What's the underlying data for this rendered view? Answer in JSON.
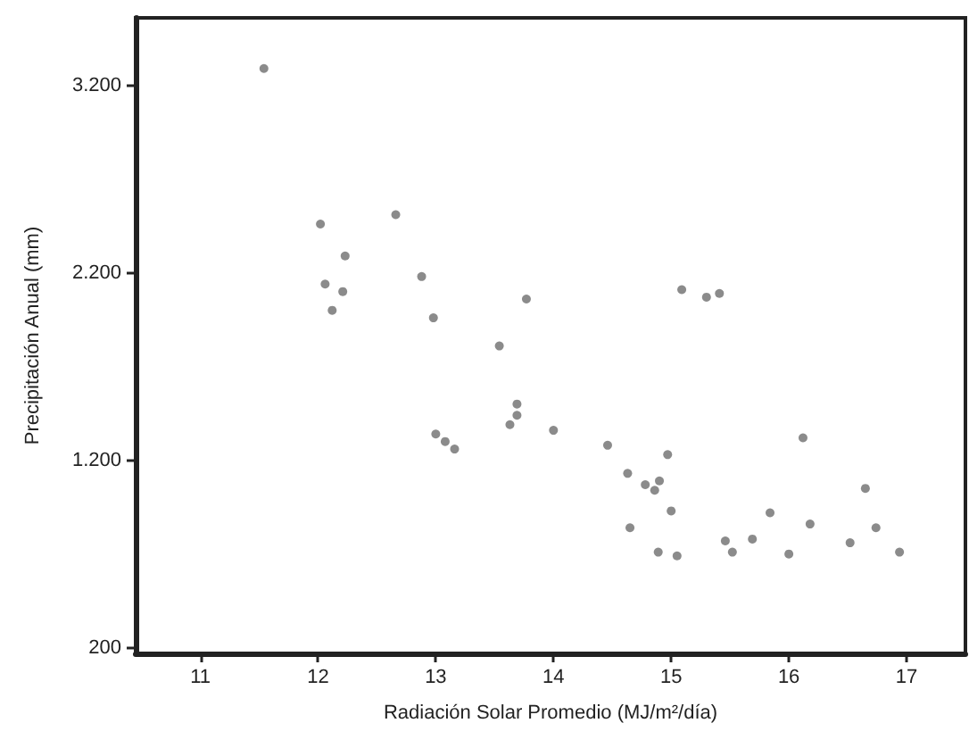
{
  "chart_data": {
    "type": "scatter",
    "xlabel": "Radiación Solar Promedio (MJ/m²/día)",
    "ylabel": "Precipitación Anual (mm)",
    "xlim": [
      10.45,
      17.5
    ],
    "xticks": [
      11,
      12,
      13,
      14,
      15,
      16,
      17
    ],
    "ylim": [
      170,
      3560
    ],
    "yticks": [
      {
        "value": 200,
        "label": "200"
      },
      {
        "value": 1200,
        "label": "1.200"
      },
      {
        "value": 2200,
        "label": "2.200"
      },
      {
        "value": 3200,
        "label": "3.200"
      }
    ],
    "grid": false,
    "marker": "circle",
    "series": [
      {
        "color": "#6e6e6e",
        "x": [
          11.54,
          12.02,
          12.66,
          12.23,
          12.06,
          12.21,
          12.12,
          12.88,
          12.98,
          13.77,
          13.54,
          13.0,
          13.08,
          13.16,
          13.69,
          13.69,
          13.63,
          14.0,
          14.46,
          14.63,
          14.78,
          14.9,
          14.86,
          14.97,
          15.0,
          14.65,
          14.89,
          15.05,
          15.09,
          15.3,
          15.41,
          15.46,
          15.52,
          15.69,
          15.84,
          16.0,
          16.12,
          16.18,
          16.52,
          16.65,
          16.74,
          16.94
        ],
        "values": [
          3290,
          2460,
          2510,
          2290,
          2140,
          2100,
          2000,
          2180,
          1960,
          2060,
          1810,
          1340,
          1300,
          1260,
          1500,
          1440,
          1390,
          1360,
          1280,
          1130,
          1070,
          1090,
          1040,
          1230,
          930,
          840,
          710,
          690,
          2110,
          2070,
          2090,
          770,
          710,
          780,
          920,
          700,
          1320,
          860,
          760,
          1050,
          840,
          710
        ]
      }
    ]
  }
}
